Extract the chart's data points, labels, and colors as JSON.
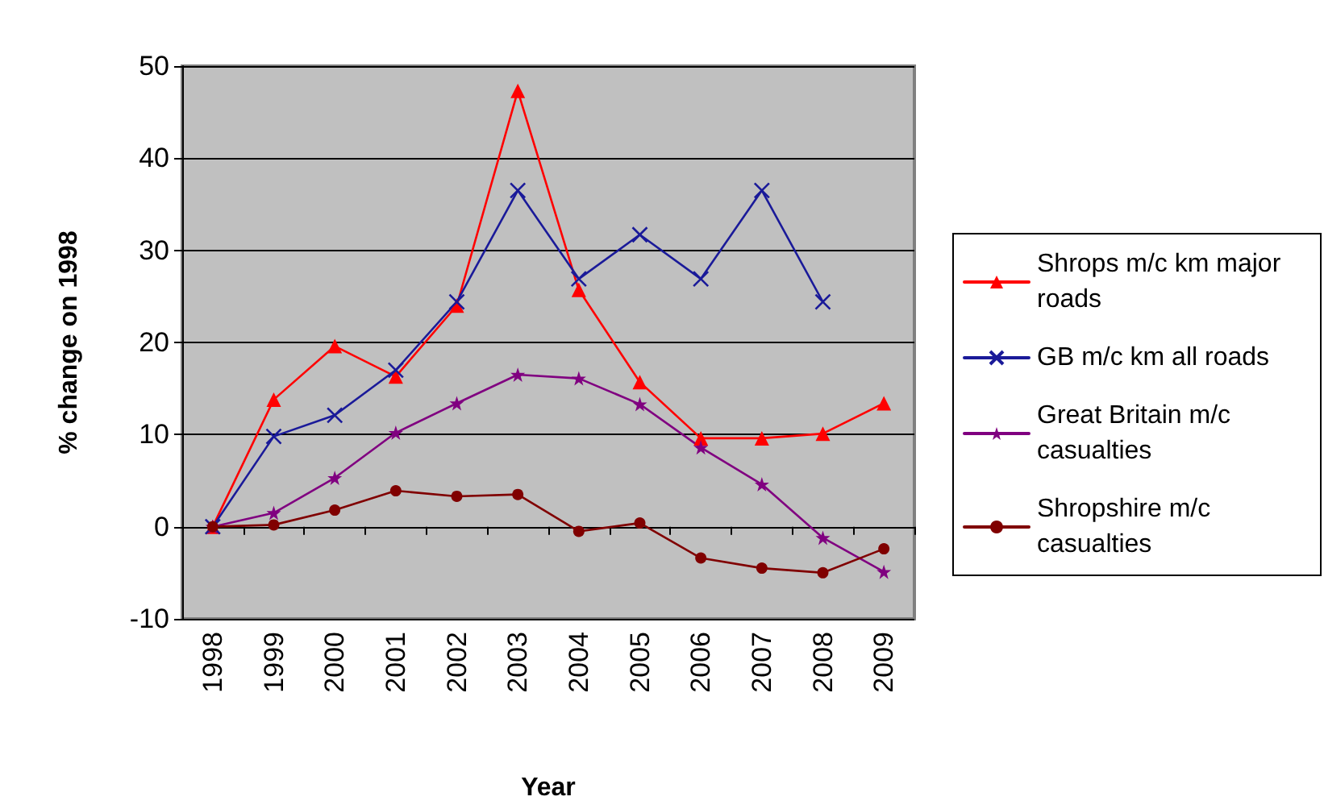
{
  "chart_data": {
    "type": "line",
    "xlabel": "Year",
    "ylabel": "% change on 1998",
    "categories": [
      "1998",
      "1999",
      "2000",
      "2001",
      "2002",
      "2003",
      "2004",
      "2005",
      "2006",
      "2007",
      "2008",
      "2009"
    ],
    "series": [
      {
        "name": "Shrops m/c km major roads",
        "color": "#ff0000",
        "marker": "triangle",
        "values": [
          0,
          13.8,
          19.6,
          16.3,
          24,
          47.3,
          25.7,
          15.7,
          9.6,
          9.6,
          10.1,
          13.4
        ]
      },
      {
        "name": "GB m/c km all roads",
        "color": "#1a1a99",
        "marker": "cross",
        "values": [
          0,
          9.8,
          12.1,
          17.0,
          24.4,
          36.5,
          26.9,
          31.7,
          26.9,
          36.5,
          24.4,
          null
        ]
      },
      {
        "name": "Great Britain m/c casualties",
        "color": "#800080",
        "marker": "star",
        "values": [
          0,
          1.5,
          5.3,
          10.2,
          13.4,
          16.5,
          16.1,
          13.3,
          8.6,
          4.6,
          -1.2,
          -4.9
        ]
      },
      {
        "name": "Shropshire m/c casualties",
        "color": "#800000",
        "marker": "circle",
        "values": [
          0,
          0.2,
          1.8,
          3.9,
          3.3,
          3.5,
          -0.5,
          0.4,
          -3.4,
          -4.5,
          -5.0,
          -2.4
        ]
      }
    ],
    "ylim": [
      -10,
      50
    ],
    "yticks": [
      -10,
      0,
      10,
      20,
      30,
      40,
      50
    ],
    "grid": "y",
    "legend": "right",
    "line_style": "solid"
  }
}
